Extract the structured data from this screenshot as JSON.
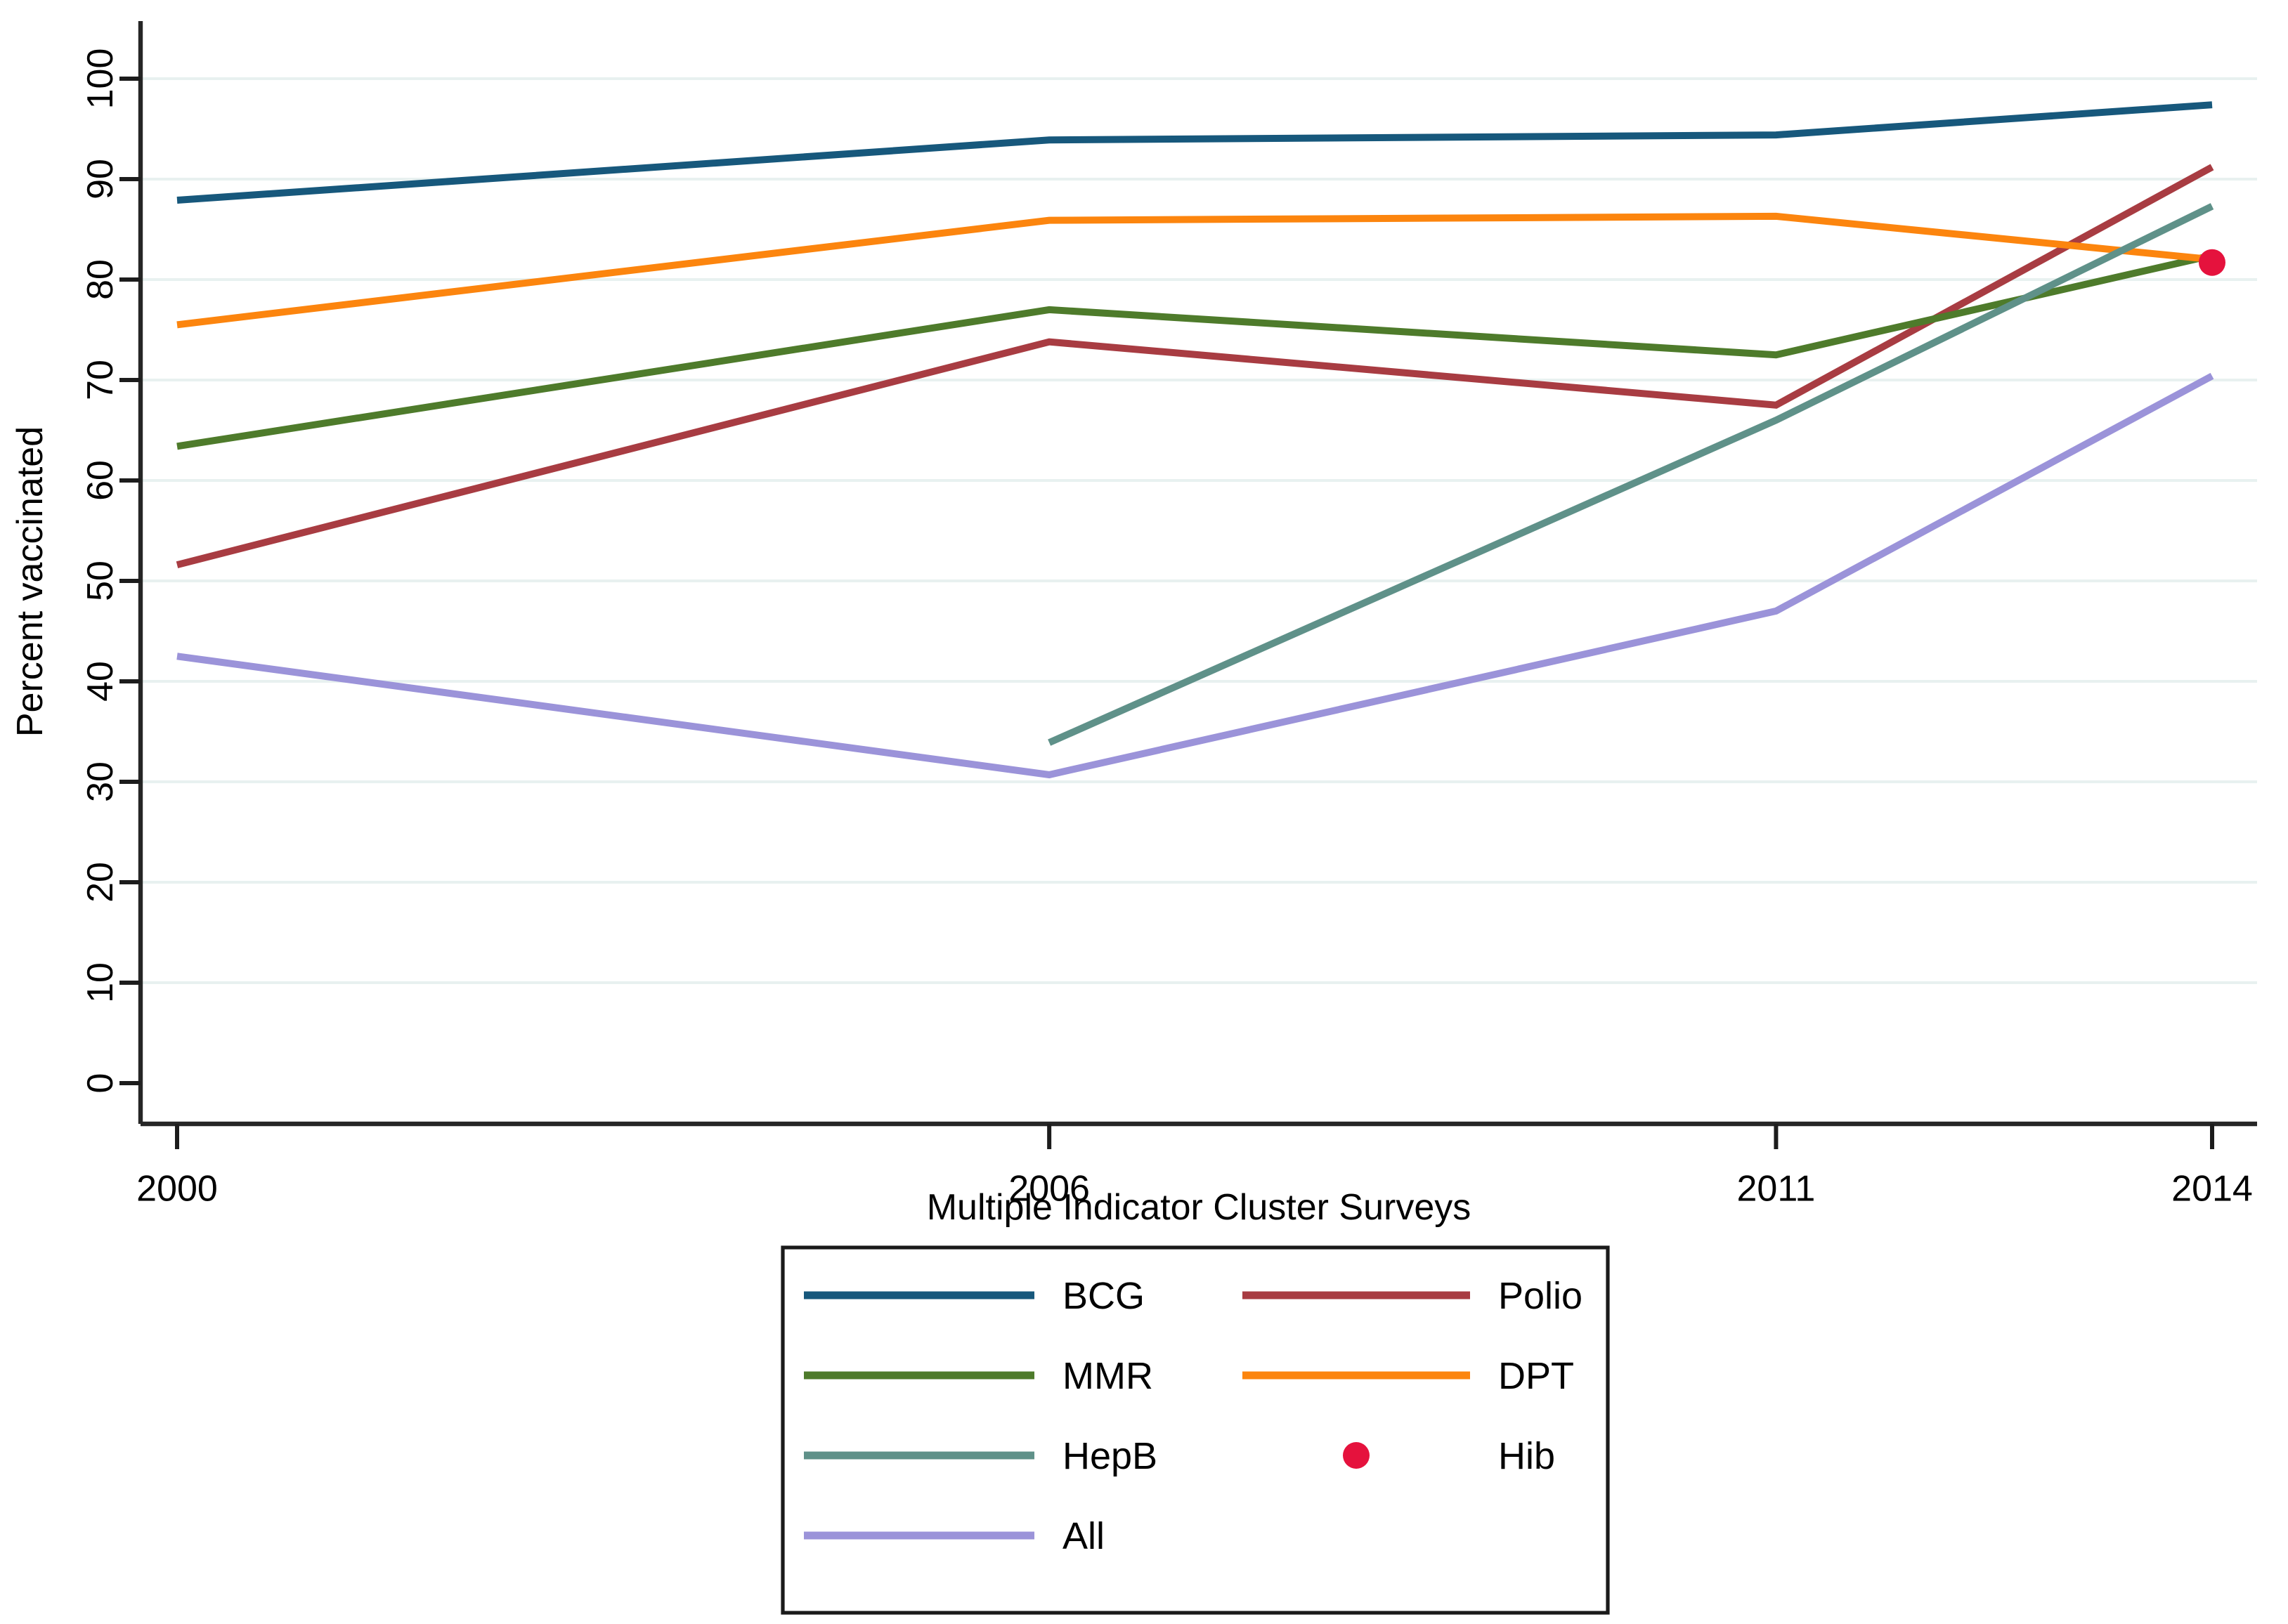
{
  "chart_data": {
    "type": "line",
    "title": "",
    "xlabel": "Multiple Indicator Cluster Surveys",
    "ylabel": "Percent vaccinated",
    "xlim": [
      2000,
      2014
    ],
    "ylim": [
      0,
      100
    ],
    "grid": true,
    "x": [
      2000,
      2006,
      2011,
      2014
    ],
    "x_tick_labels": [
      "2000",
      "2006",
      "2011",
      "2014"
    ],
    "yticks": [
      0,
      10,
      20,
      30,
      40,
      50,
      60,
      70,
      80,
      90,
      100
    ],
    "ytick_labels": [
      "0",
      "10",
      "20",
      "30",
      "40",
      "50",
      "60",
      "70",
      "80",
      "90",
      "100"
    ],
    "series": [
      {
        "name": "BCG",
        "marker": "line",
        "color": "#17587c",
        "x": [
          2000,
          2006,
          2011,
          2014
        ],
        "values": [
          87.9,
          93.9,
          94.4,
          97.4
        ]
      },
      {
        "name": "Polio",
        "marker": "line",
        "color": "#a83c42",
        "x": [
          2000,
          2006,
          2011,
          2014
        ],
        "values": [
          51.6,
          73.8,
          67.5,
          91.2
        ]
      },
      {
        "name": "MMR",
        "marker": "line",
        "color": "#4e7b2b",
        "x": [
          2000,
          2006,
          2011,
          2014
        ],
        "values": [
          63.4,
          77.0,
          72.5,
          82.4
        ]
      },
      {
        "name": "DPT",
        "marker": "line",
        "color": "#fc850e",
        "x": [
          2000,
          2006,
          2011,
          2014
        ],
        "values": [
          75.5,
          85.9,
          86.3,
          82.0
        ]
      },
      {
        "name": "HepB",
        "marker": "line",
        "color": "#5f9189",
        "x": [
          2006,
          2011,
          2014
        ],
        "values": [
          33.9,
          66.0,
          87.3
        ]
      },
      {
        "name": "Hib",
        "marker": "dot",
        "color": "#e5123d",
        "x": [
          2014
        ],
        "values": [
          81.7
        ]
      },
      {
        "name": "All",
        "marker": "line",
        "color": "#9b93d9",
        "x": [
          2000,
          2006,
          2011,
          2014
        ],
        "values": [
          42.5,
          30.7,
          47.0,
          70.4
        ]
      }
    ],
    "legend_position": "bottom-center-boxed"
  },
  "legend": {
    "rows": [
      [
        "BCG",
        "Polio"
      ],
      [
        "MMR",
        "DPT"
      ],
      [
        "HepB",
        "Hib"
      ],
      [
        "All",
        null
      ]
    ]
  },
  "colors": {
    "gridline": "#e8f1f0",
    "axis": "#262626",
    "tick": "#1c1c1c",
    "legend_border": "#1a1a1a",
    "background": "#ffffff"
  }
}
